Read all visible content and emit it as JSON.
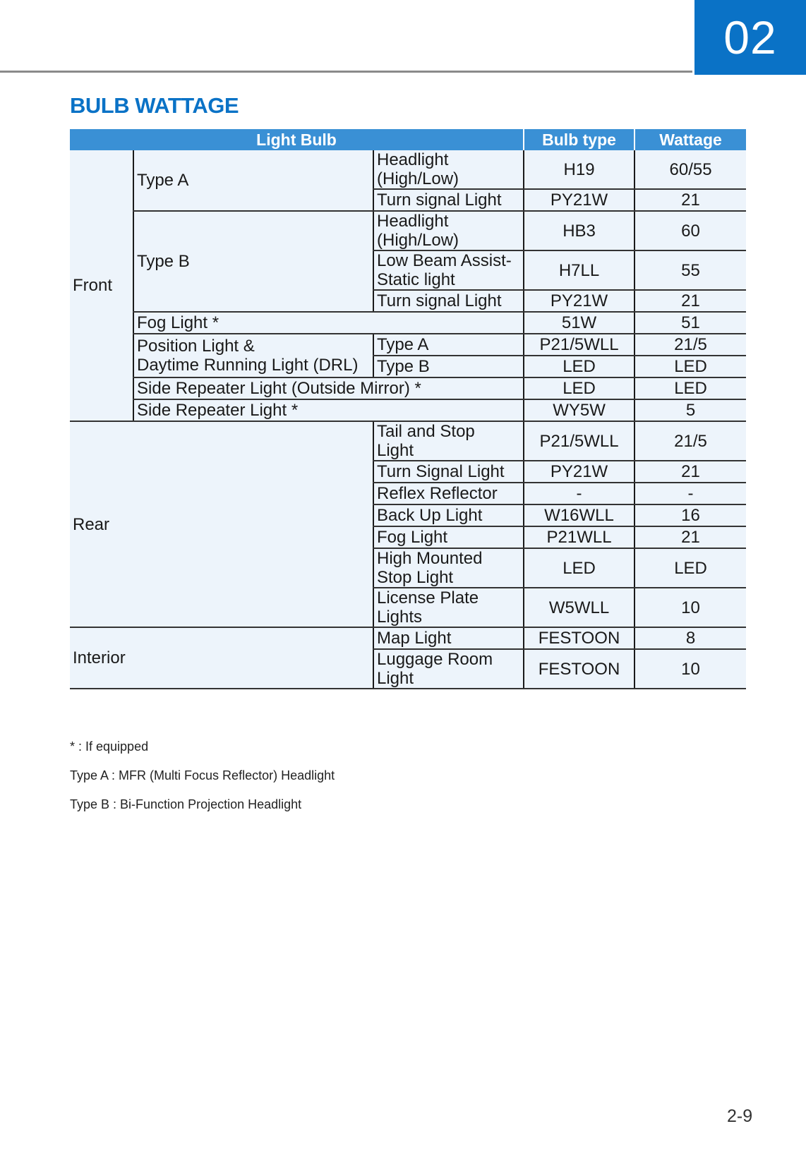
{
  "chapter": "02",
  "title": "BULB WATTAGE",
  "colors": {
    "accent": "#0a72c6",
    "header_bg": "#3a90d5",
    "cell_bg": "#edf4fb"
  },
  "table": {
    "headers": [
      "Light Bulb",
      "Bulb type",
      "Wattage"
    ],
    "rows": [
      [
        {
          "t": "Front",
          "rs": 10,
          "first": true
        },
        {
          "t": "Type A",
          "rs": 2
        },
        {
          "t": "Headlight\n(High/Low)"
        },
        {
          "t": "H19",
          "c": true
        },
        {
          "t": "60/55",
          "c": true
        }
      ],
      [
        {
          "t": "Turn signal Light"
        },
        {
          "t": "PY21W",
          "c": true
        },
        {
          "t": "21",
          "c": true
        }
      ],
      [
        {
          "t": "Type B",
          "rs": 3
        },
        {
          "t": "Headlight\n(High/Low)"
        },
        {
          "t": "HB3",
          "c": true
        },
        {
          "t": "60",
          "c": true
        }
      ],
      [
        {
          "t": "Low Beam Assist-\nStatic light"
        },
        {
          "t": "H7LL",
          "c": true
        },
        {
          "t": "55",
          "c": true
        }
      ],
      [
        {
          "t": "Turn signal Light"
        },
        {
          "t": "PY21W",
          "c": true
        },
        {
          "t": "21",
          "c": true
        }
      ],
      [
        {
          "t": "Fog Light *",
          "cs": 2
        },
        {
          "t": "51W",
          "c": true
        },
        {
          "t": "51",
          "c": true
        }
      ],
      [
        {
          "t": "Position Light &\nDaytime Running Light (DRL)",
          "rs": 2
        },
        {
          "t": "Type A"
        },
        {
          "t": "P21/5WLL",
          "c": true
        },
        {
          "t": "21/5",
          "c": true
        }
      ],
      [
        {
          "t": "Type B"
        },
        {
          "t": "LED",
          "c": true
        },
        {
          "t": "LED",
          "c": true
        }
      ],
      [
        {
          "t": "Side Repeater Light (Outside Mirror) *",
          "cs": 2
        },
        {
          "t": "LED",
          "c": true
        },
        {
          "t": "LED",
          "c": true
        }
      ],
      [
        {
          "t": "Side Repeater Light *",
          "cs": 2
        },
        {
          "t": "WY5W",
          "c": true
        },
        {
          "t": "5",
          "c": true
        }
      ],
      [
        {
          "t": "Rear",
          "rs": 7,
          "cs": 2,
          "first": true
        },
        {
          "t": "Tail and Stop\nLight"
        },
        {
          "t": "P21/5WLL",
          "c": true
        },
        {
          "t": "21/5",
          "c": true
        }
      ],
      [
        {
          "t": "Turn Signal Light"
        },
        {
          "t": "PY21W",
          "c": true
        },
        {
          "t": "21",
          "c": true
        }
      ],
      [
        {
          "t": "Reflex Reflector"
        },
        {
          "t": "-",
          "c": true
        },
        {
          "t": "-",
          "c": true
        }
      ],
      [
        {
          "t": "Back Up Light"
        },
        {
          "t": "W16WLL",
          "c": true
        },
        {
          "t": "16",
          "c": true
        }
      ],
      [
        {
          "t": "Fog Light"
        },
        {
          "t": "P21WLL",
          "c": true
        },
        {
          "t": "21",
          "c": true
        }
      ],
      [
        {
          "t": "High Mounted\nStop Light"
        },
        {
          "t": "LED",
          "c": true
        },
        {
          "t": "LED",
          "c": true
        }
      ],
      [
        {
          "t": "License Plate\nLights"
        },
        {
          "t": "W5WLL",
          "c": true
        },
        {
          "t": "10",
          "c": true
        }
      ],
      [
        {
          "t": "Interior",
          "rs": 2,
          "cs": 2,
          "first": true
        },
        {
          "t": "Map Light"
        },
        {
          "t": "FESTOON",
          "c": true
        },
        {
          "t": "8",
          "c": true
        }
      ],
      [
        {
          "t": "Luggage Room\nLight"
        },
        {
          "t": "FESTOON",
          "c": true
        },
        {
          "t": "10",
          "c": true
        }
      ]
    ]
  },
  "footnotes": [
    "* : If equipped",
    "Type A : MFR (Multi Focus Reflector) Headlight",
    "Type B : Bi-Function Projection Headlight"
  ],
  "page_number": "2-9"
}
